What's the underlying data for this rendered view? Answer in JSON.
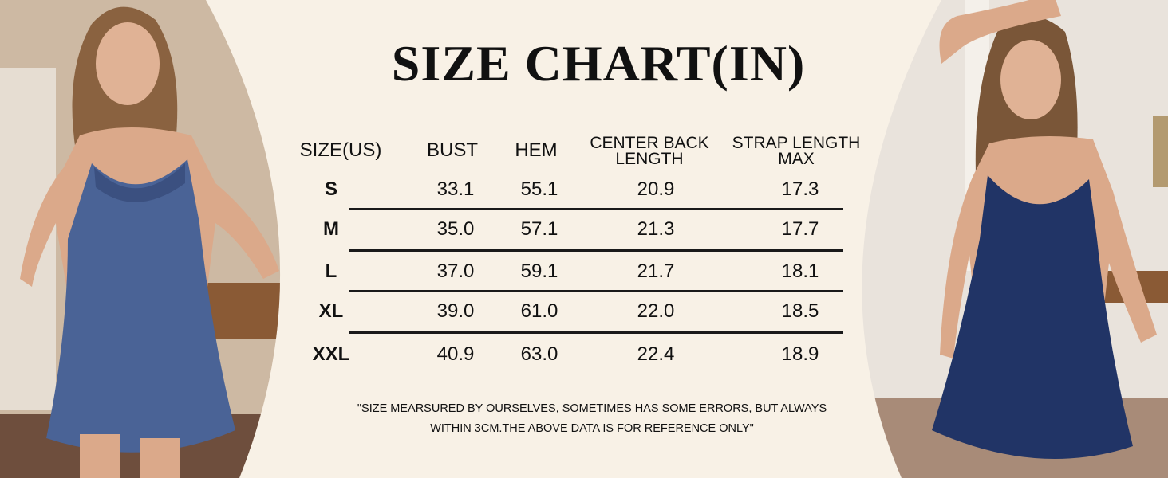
{
  "title": "SIZE CHART(IN)",
  "table": {
    "header": [
      "SIZE(US)",
      "BUST",
      "HEM",
      "CENTER BACK LENGTH",
      "STRAP LENGTH MAX"
    ],
    "rows": [
      [
        "S",
        "33.1",
        "55.1",
        "20.9",
        "17.3"
      ],
      [
        "M",
        "35.0",
        "57.1",
        "21.3",
        "17.7"
      ],
      [
        "L",
        "37.0",
        "59.1",
        "21.7",
        "18.1"
      ],
      [
        "XL",
        "39.0",
        "61.0",
        "22.0",
        "18.5"
      ],
      [
        "XXL",
        "40.9",
        "63.0",
        "22.4",
        "18.9"
      ]
    ]
  },
  "note": [
    "\"SIZE MEARSURED BY OURSELVES, SOMETIMES HAS SOME ERRORS, BUT ALWAYS",
    "WITHIN 3CM.THE ABOVE DATA IS FOR REFERENCE ONLY\""
  ]
}
